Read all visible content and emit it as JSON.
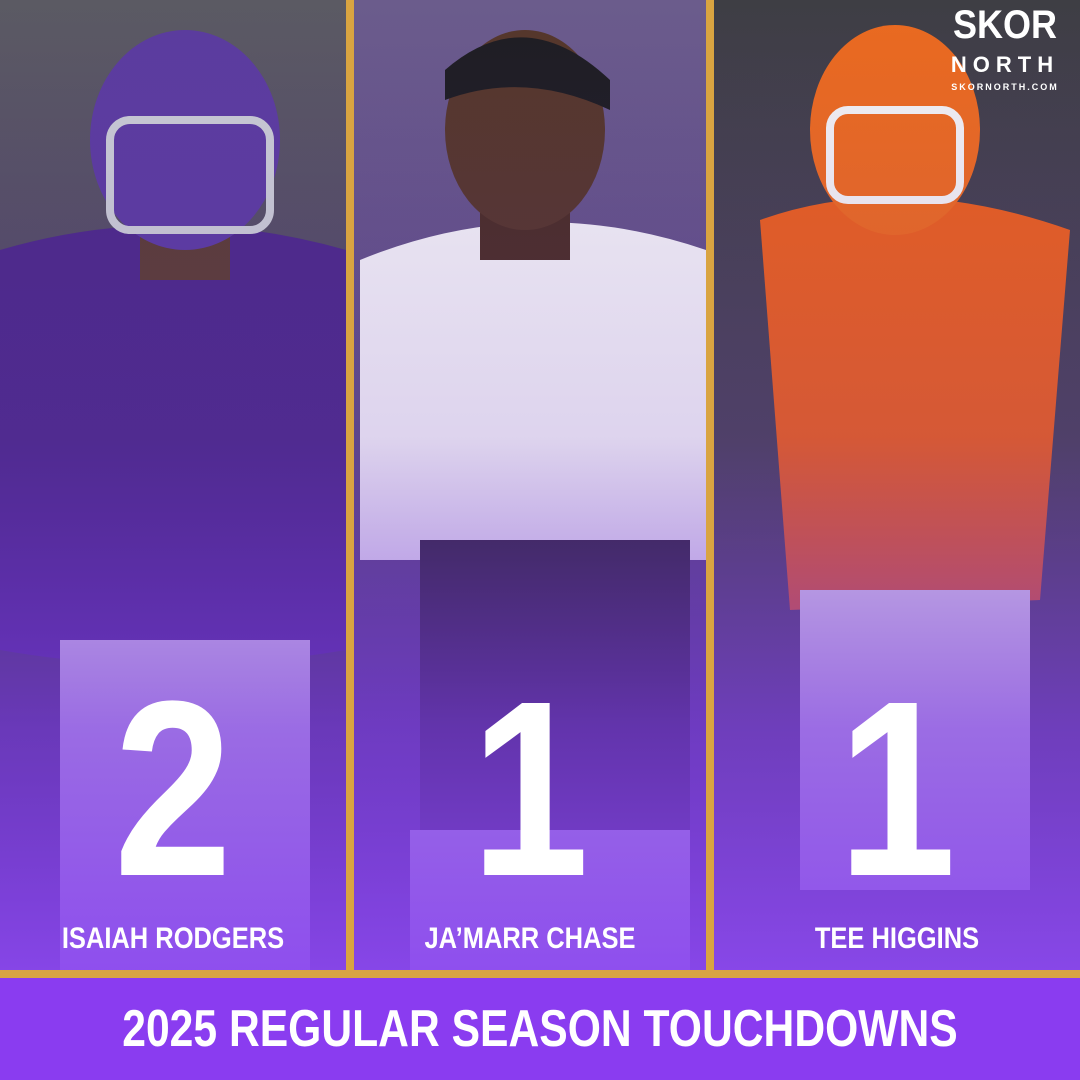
{
  "logo": {
    "brand": "SKOR",
    "sub": "NORTH",
    "site": "SKORNORTH.COM"
  },
  "players": [
    {
      "name": "ISAIAH RODGERS",
      "touchdowns": 2
    },
    {
      "name": "JA’MARR CHASE",
      "touchdowns": 1
    },
    {
      "name": "TEE HIGGINS",
      "touchdowns": 1
    }
  ],
  "title": "2025 REGULAR SEASON TOUCHDOWNS"
}
